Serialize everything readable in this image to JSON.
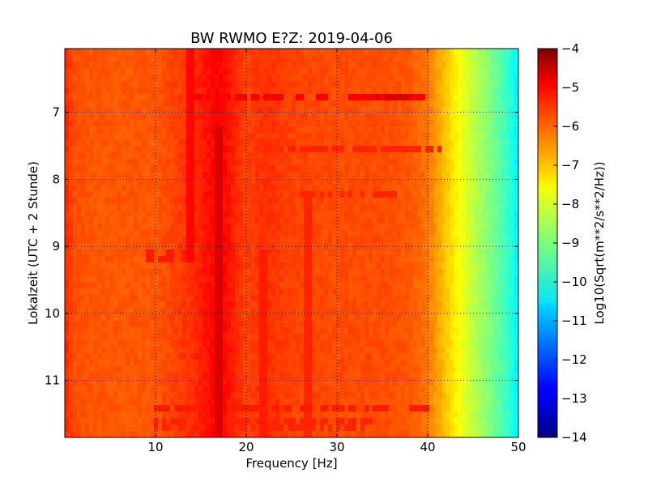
{
  "chart_data": {
    "type": "heatmap",
    "title": "BW RWMO E?Z: 2019-04-06",
    "xlabel": "Frequency [Hz]",
    "ylabel": "Lokalzeit (UTC + 2 Stunde)",
    "xlim": [
      0,
      50
    ],
    "ylim": [
      11.85,
      6.05
    ],
    "y_inverted": true,
    "x_ticks": [
      10,
      20,
      30,
      40,
      50
    ],
    "x_tick_labels": [
      "10",
      "20",
      "30",
      "40",
      "50"
    ],
    "y_ticks": [
      7,
      8,
      9,
      10,
      11
    ],
    "y_tick_labels": [
      "7",
      "8",
      "9",
      "10",
      "11"
    ],
    "grid": true,
    "grid_style": "dotted",
    "colormap": "jet",
    "colorbar": {
      "label": "Log10(Sqrt(m**2/s**2/Hz))",
      "range": [
        -14,
        -4
      ],
      "ticks": [
        -4,
        -5,
        -6,
        -7,
        -8,
        -9,
        -10,
        -11,
        -12,
        -13,
        -14
      ],
      "tick_labels": [
        "−4",
        "−5",
        "−6",
        "−7",
        "−8",
        "−9",
        "−10",
        "−11",
        "−12",
        "−13",
        "−14"
      ]
    },
    "frequency_profile": {
      "frequency_hz": [
        0,
        1,
        3,
        10,
        14,
        17,
        20,
        22,
        25,
        30,
        35,
        38,
        40,
        41,
        42,
        43,
        44,
        45,
        46,
        47,
        48,
        49,
        50
      ],
      "level": [
        -5.6,
        -6.0,
        -6.1,
        -6.1,
        -5.7,
        -5.2,
        -5.9,
        -5.7,
        -5.9,
        -6.0,
        -6.0,
        -6.1,
        -6.4,
        -6.8,
        -7.2,
        -7.6,
        -8.0,
        -8.4,
        -8.7,
        -9.0,
        -9.4,
        -9.8,
        -10.4
      ]
    },
    "persistent_lines": [
      {
        "frequency_hz": 14.0,
        "level": -5.3,
        "time_range": [
          6.05,
          9.2
        ]
      },
      {
        "frequency_hz": 17.0,
        "level": -4.9,
        "time_range": [
          7.2,
          11.85
        ]
      },
      {
        "frequency_hz": 21.8,
        "level": -5.5,
        "time_range": [
          9.0,
          11.85
        ]
      },
      {
        "frequency_hz": 27.0,
        "level": -5.6,
        "time_range": [
          8.2,
          11.85
        ]
      }
    ],
    "transient_bands": [
      {
        "time": 6.75,
        "freq_range": [
          14,
          40
        ],
        "level": -5.2
      },
      {
        "time": 6.75,
        "freq_range": [
          34,
          38
        ],
        "level": -4.9
      },
      {
        "time": 7.55,
        "freq_range": [
          23,
          42
        ],
        "level": -5.6
      },
      {
        "time": 8.2,
        "freq_range": [
          26,
          37
        ],
        "level": -5.6
      },
      {
        "time": 9.15,
        "freq_range": [
          9,
          14
        ],
        "level": -5.5
      },
      {
        "time": 11.45,
        "freq_range": [
          10,
          40
        ],
        "level": -5.5
      },
      {
        "time": 11.65,
        "freq_range": [
          10,
          34
        ],
        "level": -5.6
      }
    ]
  }
}
